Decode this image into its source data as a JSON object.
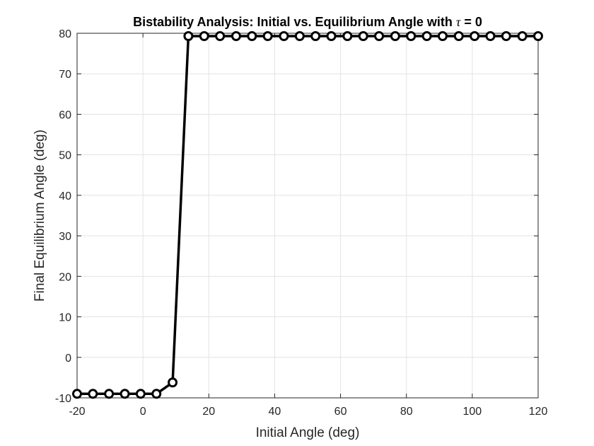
{
  "chart_data": {
    "type": "line",
    "title": "Bistability Analysis: Initial vs. Equilibrium Angle with",
    "title_symbol": "τ",
    "title_suffix": " = 0",
    "xlabel": "Initial Angle (deg)",
    "ylabel": "Final Equilibrium Angle (deg)",
    "xlim": [
      -20,
      120
    ],
    "ylim": [
      -10,
      80
    ],
    "xticks": [
      -20,
      0,
      20,
      40,
      60,
      80,
      100,
      120
    ],
    "yticks": [
      -10,
      0,
      10,
      20,
      30,
      40,
      50,
      60,
      70,
      80
    ],
    "grid": true,
    "marker": "circle",
    "line_color": "#000000",
    "series": [
      {
        "x": [
          -20,
          -15.2,
          -10.3,
          -5.5,
          -0.7,
          4.1,
          9.0,
          13.8,
          18.6,
          23.4,
          28.3,
          33.1,
          37.9,
          42.8,
          47.6,
          52.4,
          57.2,
          62.1,
          66.9,
          71.7,
          76.6,
          81.4,
          86.2,
          91.0,
          95.9,
          100.7,
          105.5,
          110.3,
          115.2,
          120
        ],
        "y": [
          -9,
          -9,
          -9,
          -9,
          -9,
          -9,
          -6.2,
          79.3,
          79.3,
          79.3,
          79.3,
          79.3,
          79.3,
          79.3,
          79.3,
          79.3,
          79.3,
          79.3,
          79.3,
          79.3,
          79.3,
          79.3,
          79.3,
          79.3,
          79.3,
          79.3,
          79.3,
          79.3,
          79.3,
          79.3
        ]
      }
    ]
  }
}
